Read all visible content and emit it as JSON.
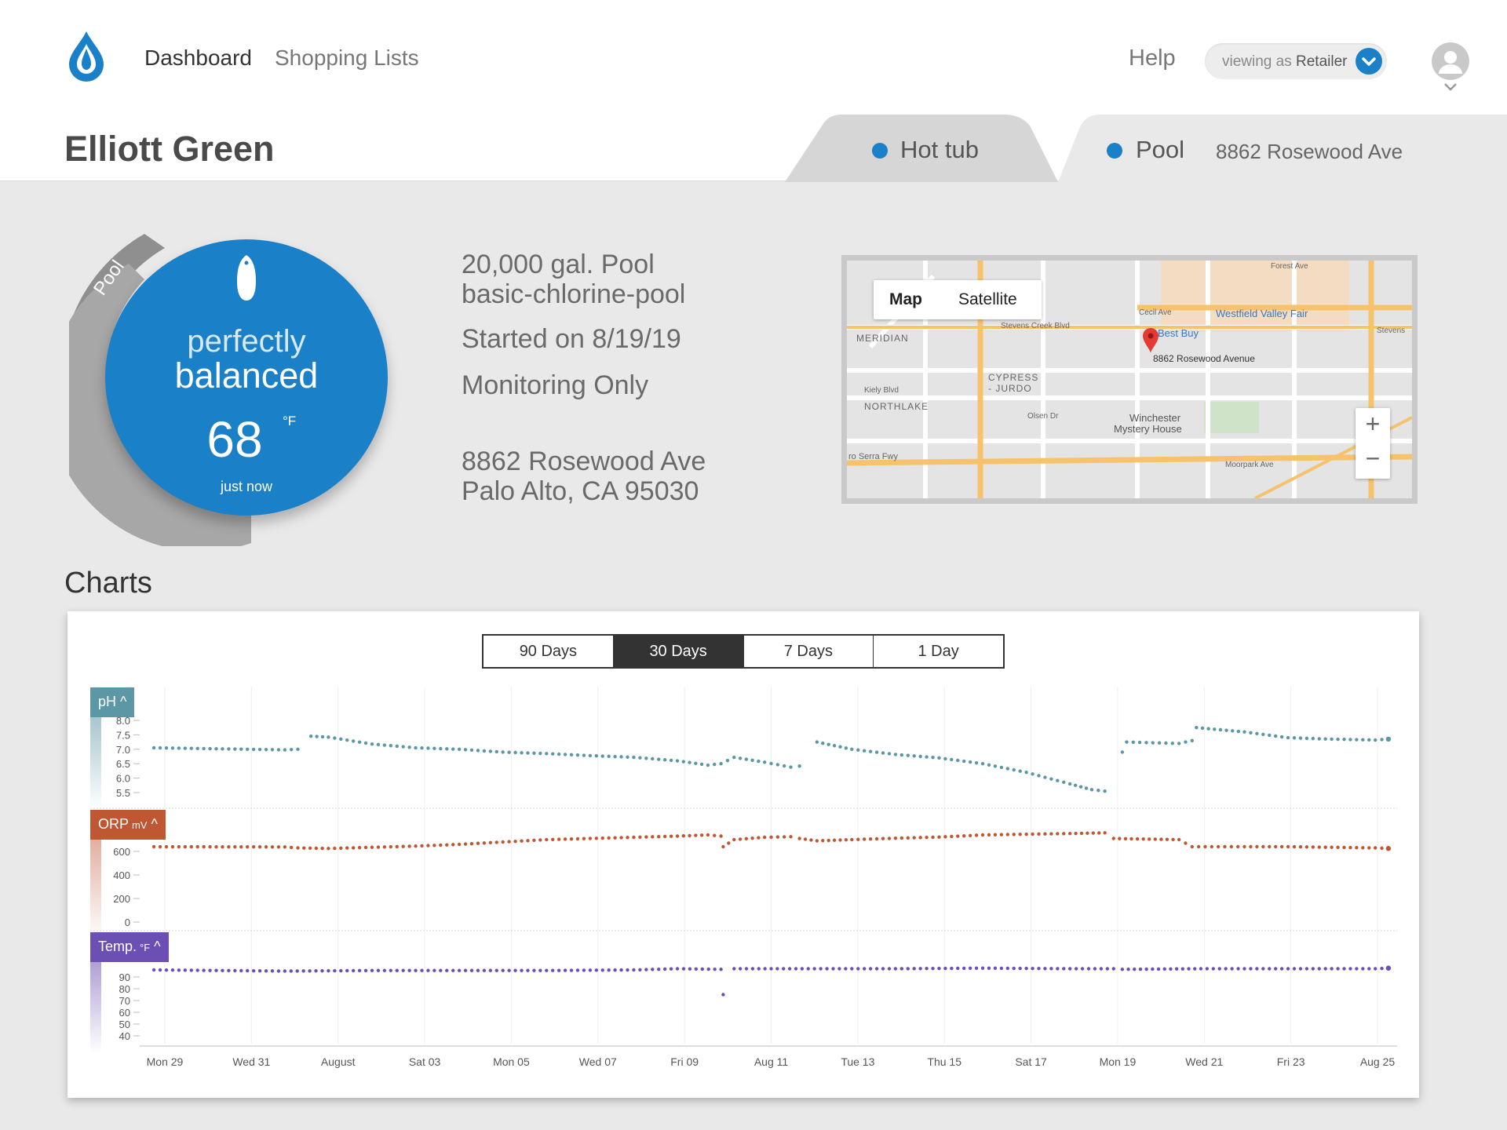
{
  "nav": {
    "dashboard": "Dashboard",
    "shopping_lists": "Shopping Lists",
    "help": "Help",
    "viewing_as_prefix": "viewing as",
    "viewing_as_role": "Retailer"
  },
  "customer": {
    "name": "Elliott Green"
  },
  "tabs": [
    {
      "label": "Hot tub",
      "address": ""
    },
    {
      "label": "Pool",
      "address": "8862 Rosewood Ave"
    }
  ],
  "gauge": {
    "ring_label": "Pool",
    "status_line1": "perfectly",
    "status_line2": "balanced",
    "temperature": "68",
    "unit": "°F",
    "updated": "just now"
  },
  "pool_info": {
    "volume": "20,000 gal. Pool",
    "profile": "basic-chlorine-pool",
    "started": "Started on 8/19/19",
    "mode": "Monitoring Only",
    "address_line1": "8862 Rosewood Ave",
    "address_line2": "Palo Alto, CA 95030"
  },
  "map": {
    "tab_map": "Map",
    "tab_satellite": "Satellite",
    "zoom_in": "+",
    "zoom_out": "−",
    "pin_label": "8862 Rosewood Avenue",
    "labels": [
      "MERIDIAN",
      "CYPRESS",
      "- JURDO",
      "NORTHLAKE",
      "Westfield Valley Fair",
      "Best Buy",
      "Winchester",
      "Mystery House",
      "Stevens Creek Blvd",
      "Cecil Ave",
      "Kiely Blvd",
      "Olsen Dr",
      "Moorpark Ave",
      "ro Serra Fwy",
      "Forest Ave",
      "Stevens"
    ]
  },
  "charts_heading": "Charts",
  "ranges": [
    "90 Days",
    "30 Days",
    "7 Days",
    "1 Day"
  ],
  "active_range": "30 Days",
  "colors": {
    "brand": "#1a80c8",
    "ph": "#5b97a4",
    "orp": "#bf5733",
    "temp": "#6c4fb3"
  },
  "chart_data": {
    "type": "scatter",
    "x_ticks": [
      "Mon 29",
      "Wed 31",
      "August",
      "Sat 03",
      "Mon 05",
      "Wed 07",
      "Fri 09",
      "Aug 11",
      "Tue 13",
      "Thu 15",
      "Sat 17",
      "Mon 19",
      "Wed 21",
      "Fri 23",
      "Aug 25"
    ],
    "x_range_days": [
      -0.2,
      28.5
    ],
    "panels": [
      {
        "name": "pH",
        "unit": "",
        "ticks": [
          "8.0",
          "7.5",
          "7.0",
          "6.5",
          "6.0",
          "5.5"
        ],
        "ylim": [
          5.5,
          8.0
        ],
        "points": [
          [
            0,
            7.05
          ],
          [
            3,
            6.98
          ],
          [
            3.3,
            7.0
          ],
          [
            3.6,
            7.45
          ],
          [
            4,
            7.42
          ],
          [
            5,
            7.18
          ],
          [
            6,
            7.05
          ],
          [
            7,
            7.0
          ],
          [
            8,
            6.9
          ],
          [
            9,
            6.85
          ],
          [
            10,
            6.78
          ],
          [
            11,
            6.72
          ],
          [
            12,
            6.6
          ],
          [
            12.7,
            6.45
          ],
          [
            13,
            6.5
          ],
          [
            13.3,
            6.72
          ],
          [
            14,
            6.55
          ],
          [
            14.6,
            6.38
          ],
          [
            14.8,
            6.42
          ],
          [
            15.2,
            7.25
          ],
          [
            16,
            7.0
          ],
          [
            17,
            6.82
          ],
          [
            18,
            6.7
          ],
          [
            19,
            6.5
          ],
          [
            20,
            6.2
          ],
          [
            21,
            5.8
          ],
          [
            21.5,
            5.6
          ],
          [
            21.8,
            5.55
          ],
          [
            22.2,
            6.9
          ],
          [
            22.3,
            7.25
          ],
          [
            23.5,
            7.2
          ],
          [
            23.8,
            7.3
          ],
          [
            23.9,
            7.75
          ],
          [
            25,
            7.6
          ],
          [
            26,
            7.4
          ],
          [
            27,
            7.35
          ],
          [
            28,
            7.32
          ],
          [
            28.3,
            7.35
          ]
        ]
      },
      {
        "name": "ORP",
        "unit": "mV",
        "ticks": [
          "600",
          "400",
          "200",
          "0"
        ],
        "ylim": [
          0,
          800
        ],
        "points": [
          [
            0,
            640
          ],
          [
            3,
            638
          ],
          [
            3.3,
            630
          ],
          [
            4,
            625
          ],
          [
            5,
            635
          ],
          [
            6,
            645
          ],
          [
            7,
            660
          ],
          [
            8,
            680
          ],
          [
            9,
            700
          ],
          [
            10,
            710
          ],
          [
            12,
            730
          ],
          [
            12.7,
            740
          ],
          [
            13,
            730
          ],
          [
            13.05,
            640
          ],
          [
            13.3,
            700
          ],
          [
            14,
            720
          ],
          [
            14.6,
            725
          ],
          [
            14.8,
            710
          ],
          [
            15.2,
            690
          ],
          [
            16,
            700
          ],
          [
            17,
            712
          ],
          [
            18,
            722
          ],
          [
            19,
            740
          ],
          [
            20,
            746
          ],
          [
            21,
            752
          ],
          [
            21.8,
            758
          ],
          [
            22,
            710
          ],
          [
            23.5,
            700
          ],
          [
            23.8,
            640
          ],
          [
            25,
            640
          ],
          [
            26,
            640
          ],
          [
            27,
            635
          ],
          [
            28,
            630
          ],
          [
            28.3,
            625
          ]
        ]
      },
      {
        "name": "Temp.",
        "unit": "°F",
        "ticks": [
          "90",
          "80",
          "70",
          "60",
          "50",
          "40"
        ],
        "ylim": [
          40,
          100
        ],
        "points": [
          [
            0,
            96
          ],
          [
            3,
            95
          ],
          [
            5,
            95.5
          ],
          [
            7,
            95.5
          ],
          [
            9,
            95.5
          ],
          [
            11,
            96
          ],
          [
            12,
            97
          ],
          [
            13,
            96.5
          ],
          [
            13.05,
            75
          ],
          [
            13.3,
            97
          ],
          [
            15,
            97
          ],
          [
            17,
            97
          ],
          [
            19,
            97.5
          ],
          [
            21,
            97
          ],
          [
            22,
            97
          ],
          [
            22.2,
            96.5
          ],
          [
            24,
            97
          ],
          [
            26,
            97
          ],
          [
            28,
            97
          ],
          [
            28.3,
            97.5
          ]
        ]
      }
    ]
  }
}
